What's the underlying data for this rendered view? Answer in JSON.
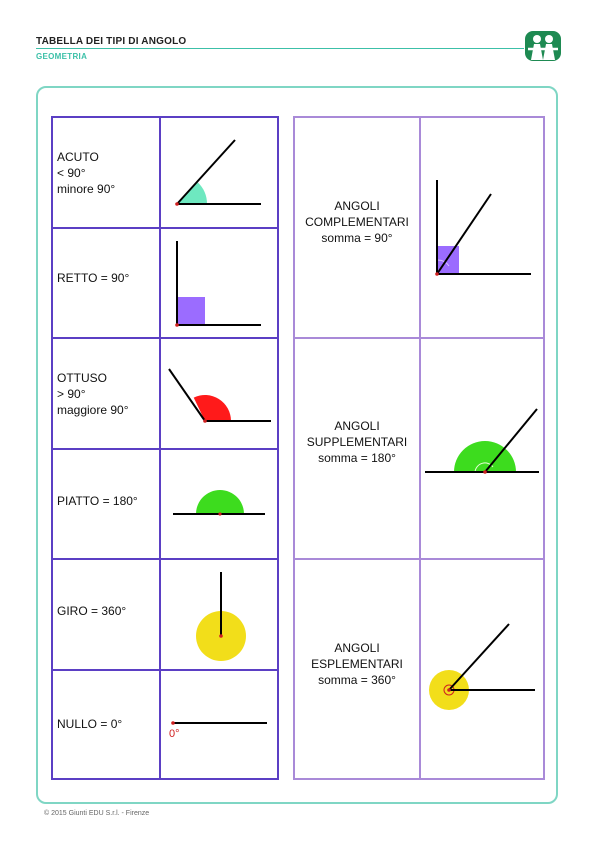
{
  "header": {
    "title": "TABELLA DEI TIPI DI ANGOLO",
    "subtitle": "GEOMETRIA"
  },
  "angles": [
    {
      "lines": [
        "ACUTO",
        "< 90°",
        "minore 90°"
      ],
      "icon": "acute-angle-icon",
      "color": "#6ee8c0"
    },
    {
      "lines": [
        "RETTO   = 90°"
      ],
      "icon": "right-angle-icon",
      "color": "#9b6cff"
    },
    {
      "lines": [
        "OTTUSO",
        "> 90°",
        "maggiore 90°"
      ],
      "icon": "obtuse-angle-icon",
      "color": "#ff1a1a"
    },
    {
      "lines": [
        "PIATTO  = 180°"
      ],
      "icon": "straight-angle-icon",
      "color": "#3ddc1e"
    },
    {
      "lines": [
        "GIRO  = 360°"
      ],
      "icon": "full-angle-icon",
      "color": "#f2de1a"
    },
    {
      "lines": [
        "NULLO  = 0°"
      ],
      "icon": "null-angle-icon",
      "color": "#d02020",
      "mark": "0°"
    }
  ],
  "pairs": [
    {
      "lines": [
        "ANGOLI",
        "COMPLEMENTARI",
        "somma = 90°"
      ],
      "icon": "complementary-angles-icon",
      "color": "#9b6cff"
    },
    {
      "lines": [
        "ANGOLI",
        "SUPPLEMENTARI",
        "somma = 180°"
      ],
      "icon": "supplementary-angles-icon",
      "color": "#3ddc1e"
    },
    {
      "lines": [
        "ANGOLI",
        "ESPLEMENTARI",
        "somma = 360°"
      ],
      "icon": "explementary-angles-icon",
      "color": "#f2de1a"
    }
  ],
  "footer": "© 2015 Giunti EDU S.r.l. - Firenze",
  "colors": {
    "accent": "#3cc0a8",
    "grid_left": "#5b3fc4",
    "grid_right": "#a98ad8"
  }
}
